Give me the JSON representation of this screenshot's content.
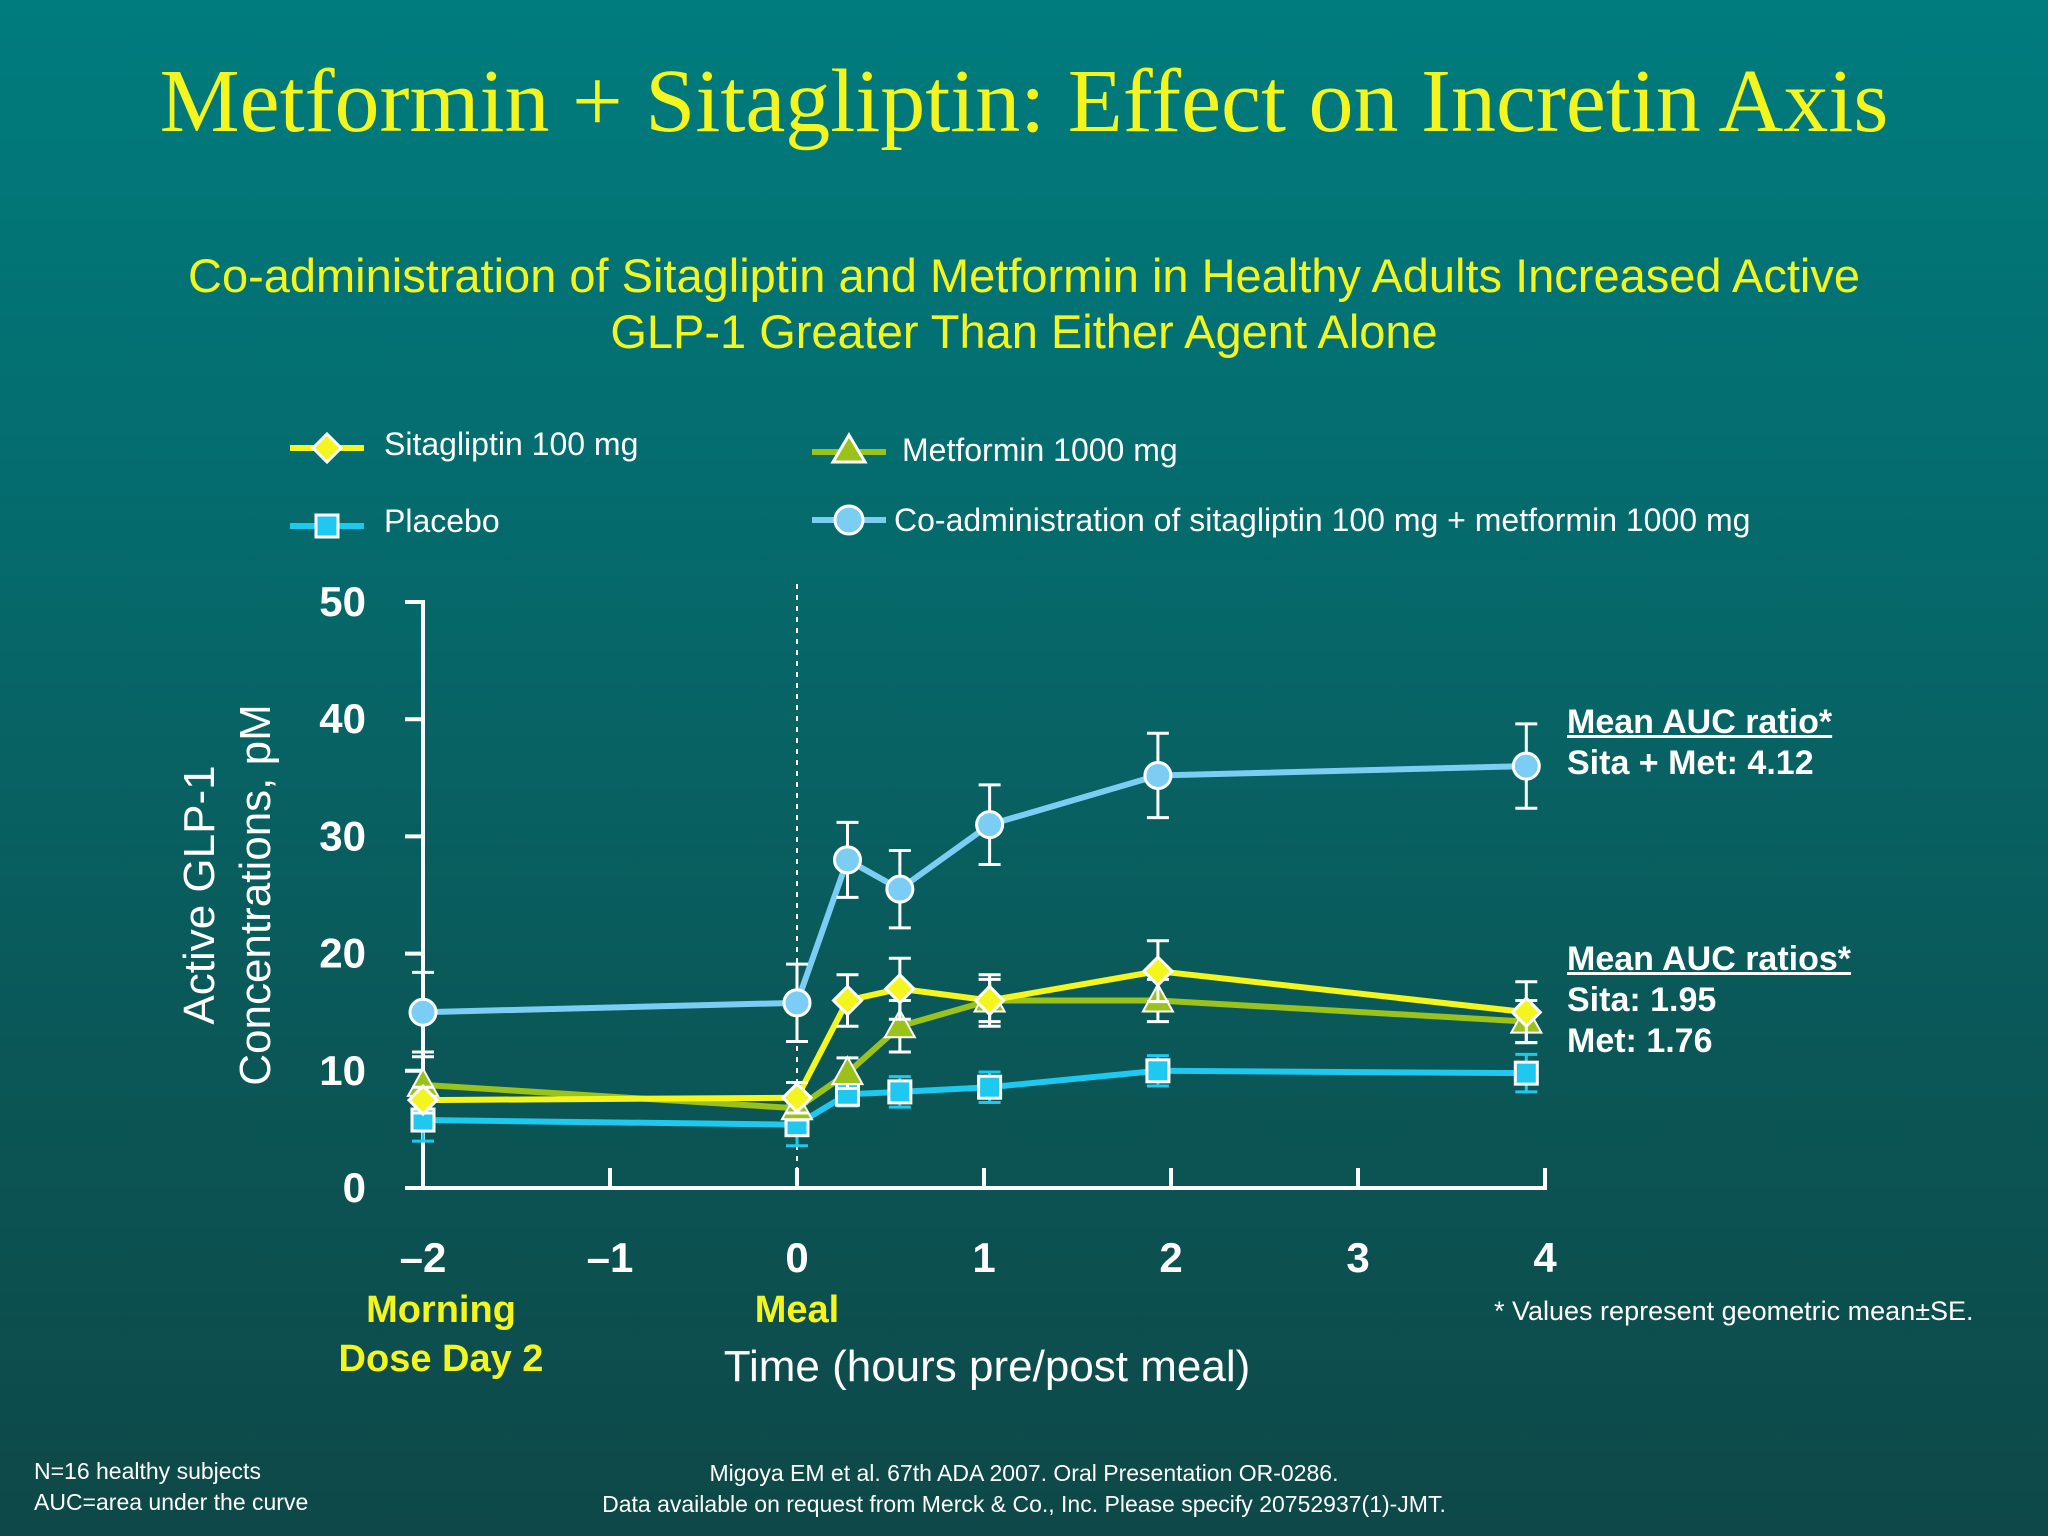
{
  "slide": {
    "title": "Metformin + Sitagliptin: Effect on Incretin Axis",
    "subtitle_line1": "Co-administration of Sitagliptin and Metformin in Healthy Adults Increased Active",
    "subtitle_line2": "GLP-1 Greater Than Either Agent Alone"
  },
  "annotations": {
    "combo_heading": "Mean AUC ratio*",
    "combo_value": "Sita + Met: 4.12",
    "mono_heading": "Mean AUC ratios*",
    "sita_value": "Sita: 1.95",
    "met_value": "Met: 1.76",
    "se_note": "* Values represent geometric mean±SE."
  },
  "footer": {
    "left_line1": "N=16 healthy subjects",
    "left_line2": "AUC=area under the curve",
    "center_line1": "Migoya EM et al. 67th ADA 2007. Oral Presentation OR-0286.",
    "center_line2": "Data available on request from Merck & Co., Inc. Please specify 20752937(1)-JMT."
  },
  "colors": {
    "background": "#056a6c",
    "title": "#f4f51e",
    "sitagliptin": "#f4f51e",
    "metformin": "#9ac21a",
    "placebo": "#1ec8ee",
    "combo": "#7ccdf4",
    "axis": "#ffffff"
  },
  "chart_data": {
    "type": "line",
    "xlabel": "Time (hours pre/post meal)",
    "ylabel_line1": "Active GLP-1",
    "ylabel_line2": "Concentrations, pM",
    "xlim": [
      -2,
      4
    ],
    "ylim": [
      0,
      50
    ],
    "x_ticks": [
      -2,
      -1,
      0,
      1,
      2,
      3,
      4
    ],
    "x_tick_labels": [
      "–2",
      "–1",
      "0",
      "1",
      "2",
      "3",
      "4"
    ],
    "y_ticks": [
      0,
      10,
      20,
      30,
      40,
      50
    ],
    "y_tick_labels": [
      "0",
      "10",
      "20",
      "30",
      "40",
      "50"
    ],
    "grid": false,
    "legend_position": "top",
    "meal_marker_x": 0,
    "x_annotations": [
      {
        "x": -2,
        "lines": [
          "Morning",
          "Dose Day 2"
        ]
      },
      {
        "x": 0,
        "lines": [
          "Meal"
        ]
      }
    ],
    "series": [
      {
        "name": "Sitagliptin 100 mg",
        "marker": "diamond",
        "color": "#f4f51e",
        "x": [
          -2,
          0,
          0.27,
          0.55,
          1.03,
          1.93,
          3.9
        ],
        "y": [
          7.5,
          7.7,
          16,
          17,
          16,
          18.5,
          15
        ],
        "err": [
          1.1,
          1.3,
          2.2,
          2.6,
          2.2,
          2.6,
          2.6
        ]
      },
      {
        "name": "Metformin 1000 mg",
        "marker": "triangle",
        "color": "#9ac21a",
        "x": [
          -2,
          0,
          0.27,
          0.55,
          1.03,
          1.93,
          3.9
        ],
        "y": [
          8.8,
          6.8,
          9.8,
          13.8,
          16,
          16,
          14.2
        ],
        "err": [
          2.4,
          1.0,
          1.3,
          2.2,
          1.8,
          1.8,
          1.8
        ]
      },
      {
        "name": "Placebo",
        "marker": "square",
        "color": "#1ec8ee",
        "x": [
          -2,
          0,
          0.27,
          0.55,
          1.03,
          1.93,
          3.9
        ],
        "y": [
          5.8,
          5.4,
          8,
          8.2,
          8.6,
          10,
          9.8
        ],
        "err": [
          1.8,
          1.8,
          1.0,
          1.3,
          1.3,
          1.3,
          1.6
        ]
      },
      {
        "name": "Co-administration of sitagliptin 100 mg + metformin 1000 mg",
        "marker": "circle",
        "color": "#7ccdf4",
        "x": [
          -2,
          0,
          0.27,
          0.55,
          1.03,
          1.93,
          3.9
        ],
        "y": [
          15,
          15.8,
          28,
          25.5,
          31,
          35.2,
          36
        ],
        "err": [
          3.4,
          3.3,
          3.2,
          3.3,
          3.4,
          3.6,
          3.6
        ]
      }
    ]
  }
}
